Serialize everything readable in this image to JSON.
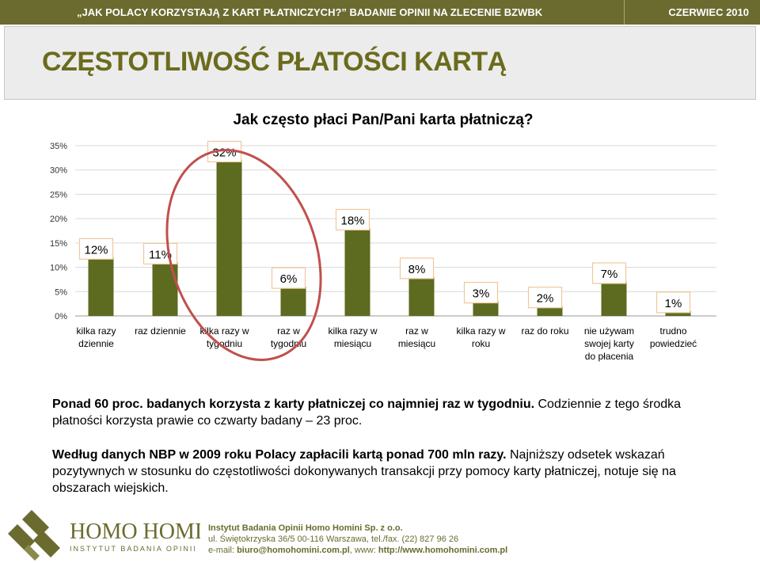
{
  "header": {
    "left_text": "„JAK POLACY KORZYSTAJĄ Z KART PŁATNICZYCH?” BADANIE OPINII NA ZLECENIE BZWBK",
    "right_text": "CZERWIEC 2010"
  },
  "slide_title": "CZĘSTOTLIWOŚĆ PŁATOŚCI KARTĄ",
  "question": "Jak często płaci Pan/Pani karta płatniczą?",
  "colors": {
    "bar": "#5c6b1f",
    "title": "#6b6b1d",
    "header_bg": "#6b6b30",
    "circle": "#c0504d",
    "label_border": "#f0c79b"
  },
  "chart_data": {
    "type": "bar",
    "categories": [
      [
        "kilka razy",
        "dziennie"
      ],
      [
        "raz dziennie"
      ],
      [
        "kilka razy w",
        "tygodniu"
      ],
      [
        "raz w",
        "tygodniu"
      ],
      [
        "kilka razy w",
        "miesiącu"
      ],
      [
        "raz w",
        "miesiącu"
      ],
      [
        "kilka razy w",
        "roku"
      ],
      [
        "raz do roku"
      ],
      [
        "nie używam",
        "swojej karty",
        "do płacenia"
      ],
      [
        "trudno",
        "powiedzieć"
      ]
    ],
    "values": [
      12,
      11,
      32,
      6,
      18,
      8,
      3,
      2,
      7,
      1
    ],
    "data_labels": [
      "12%",
      "11%",
      "32%",
      "6%",
      "18%",
      "8%",
      "3%",
      "2%",
      "7%",
      "1%"
    ],
    "yticks": [
      "0%",
      "5%",
      "10%",
      "15%",
      "20%",
      "25%",
      "30%",
      "35%"
    ],
    "ylim": [
      0,
      35
    ],
    "grid": true,
    "annotation": "red ellipse around 'kilka razy w tygodniu' and 'raz w tygodniu'"
  },
  "paragraph1": {
    "bold": "Ponad  60 proc. badanych korzysta z karty płatniczej co najmniej raz w tygodniu.",
    "normal": " Codziennie z tego środka płatności korzysta prawie co czwarty badany – 23 proc."
  },
  "paragraph2": {
    "bold": "Według danych NBP w 2009 roku Polacy zapłacili kartą ponad 700 mln razy.",
    "normal": " Najniższy odsetek wskazań pozytywnych w stosunku do częstotliwości dokonywanych transakcji przy pomocy karty płatniczej, notuje się na obszarach wiejskich."
  },
  "footer": {
    "logo_name": "HOMO HOMINI",
    "logo_sub": "INSTYTUT BADANIA OPINII",
    "org": "Instytut Badania Opinii Homo Homini Sp. z o.o.",
    "address": "ul. Świętokrzyska 36/5 00-116 Warszawa, tel./fax. (22) 827 96 26",
    "email_label": "e-mail: ",
    "email": "biuro@homohomini.com.pl",
    "www_label": ", www: ",
    "www": "http://www.homohomini.com.pl"
  }
}
